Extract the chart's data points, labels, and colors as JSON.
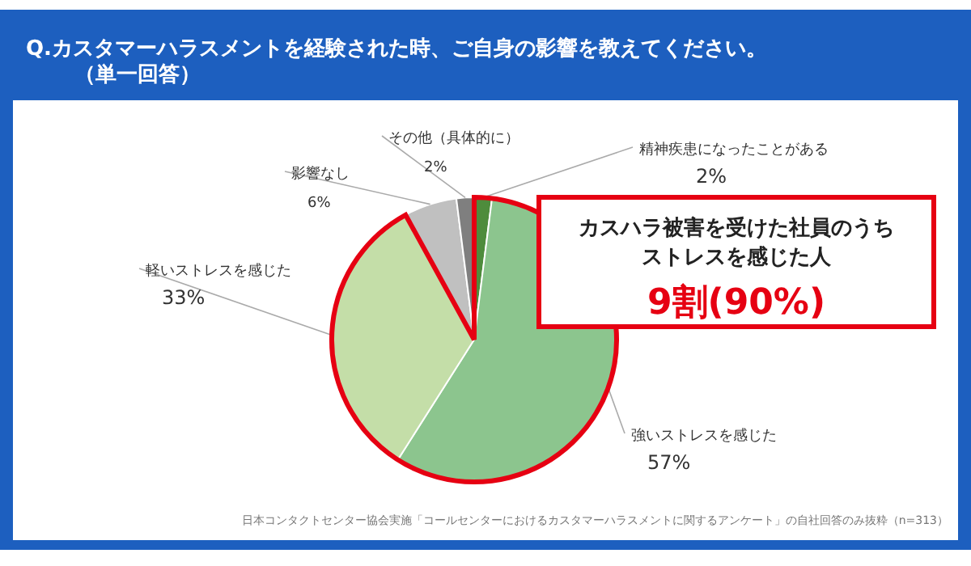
{
  "chart_data": {
    "type": "pie",
    "title": "Q.カスタマーハラスメントを経験された時、ご自身の影響を教えてください。",
    "subtitle": "（単一回答）",
    "categories": [
      "精神疾患になったことがある",
      "強いストレスを感じた",
      "軽いストレスを感じた",
      "影響なし",
      "その他（具体的に）"
    ],
    "values": [
      2,
      57,
      33,
      6,
      2
    ],
    "value_labels": [
      "2%",
      "57%",
      "33%",
      "6%",
      "2%"
    ],
    "colors": [
      "#4e8c3c",
      "#8cc58e",
      "#c4dea8",
      "#c0c0c0",
      "#7f7f7f"
    ],
    "annotations": [
      "カスハラ被害を受けた社員のうち",
      "ストレスを感じた人",
      "9割(90%)",
      "日本コンタクトセンター協会実施「コールセンターにおけるカスタマーハラスメントに関するアンケート」の自社回答のみ抜粋（n=313）"
    ]
  }
}
